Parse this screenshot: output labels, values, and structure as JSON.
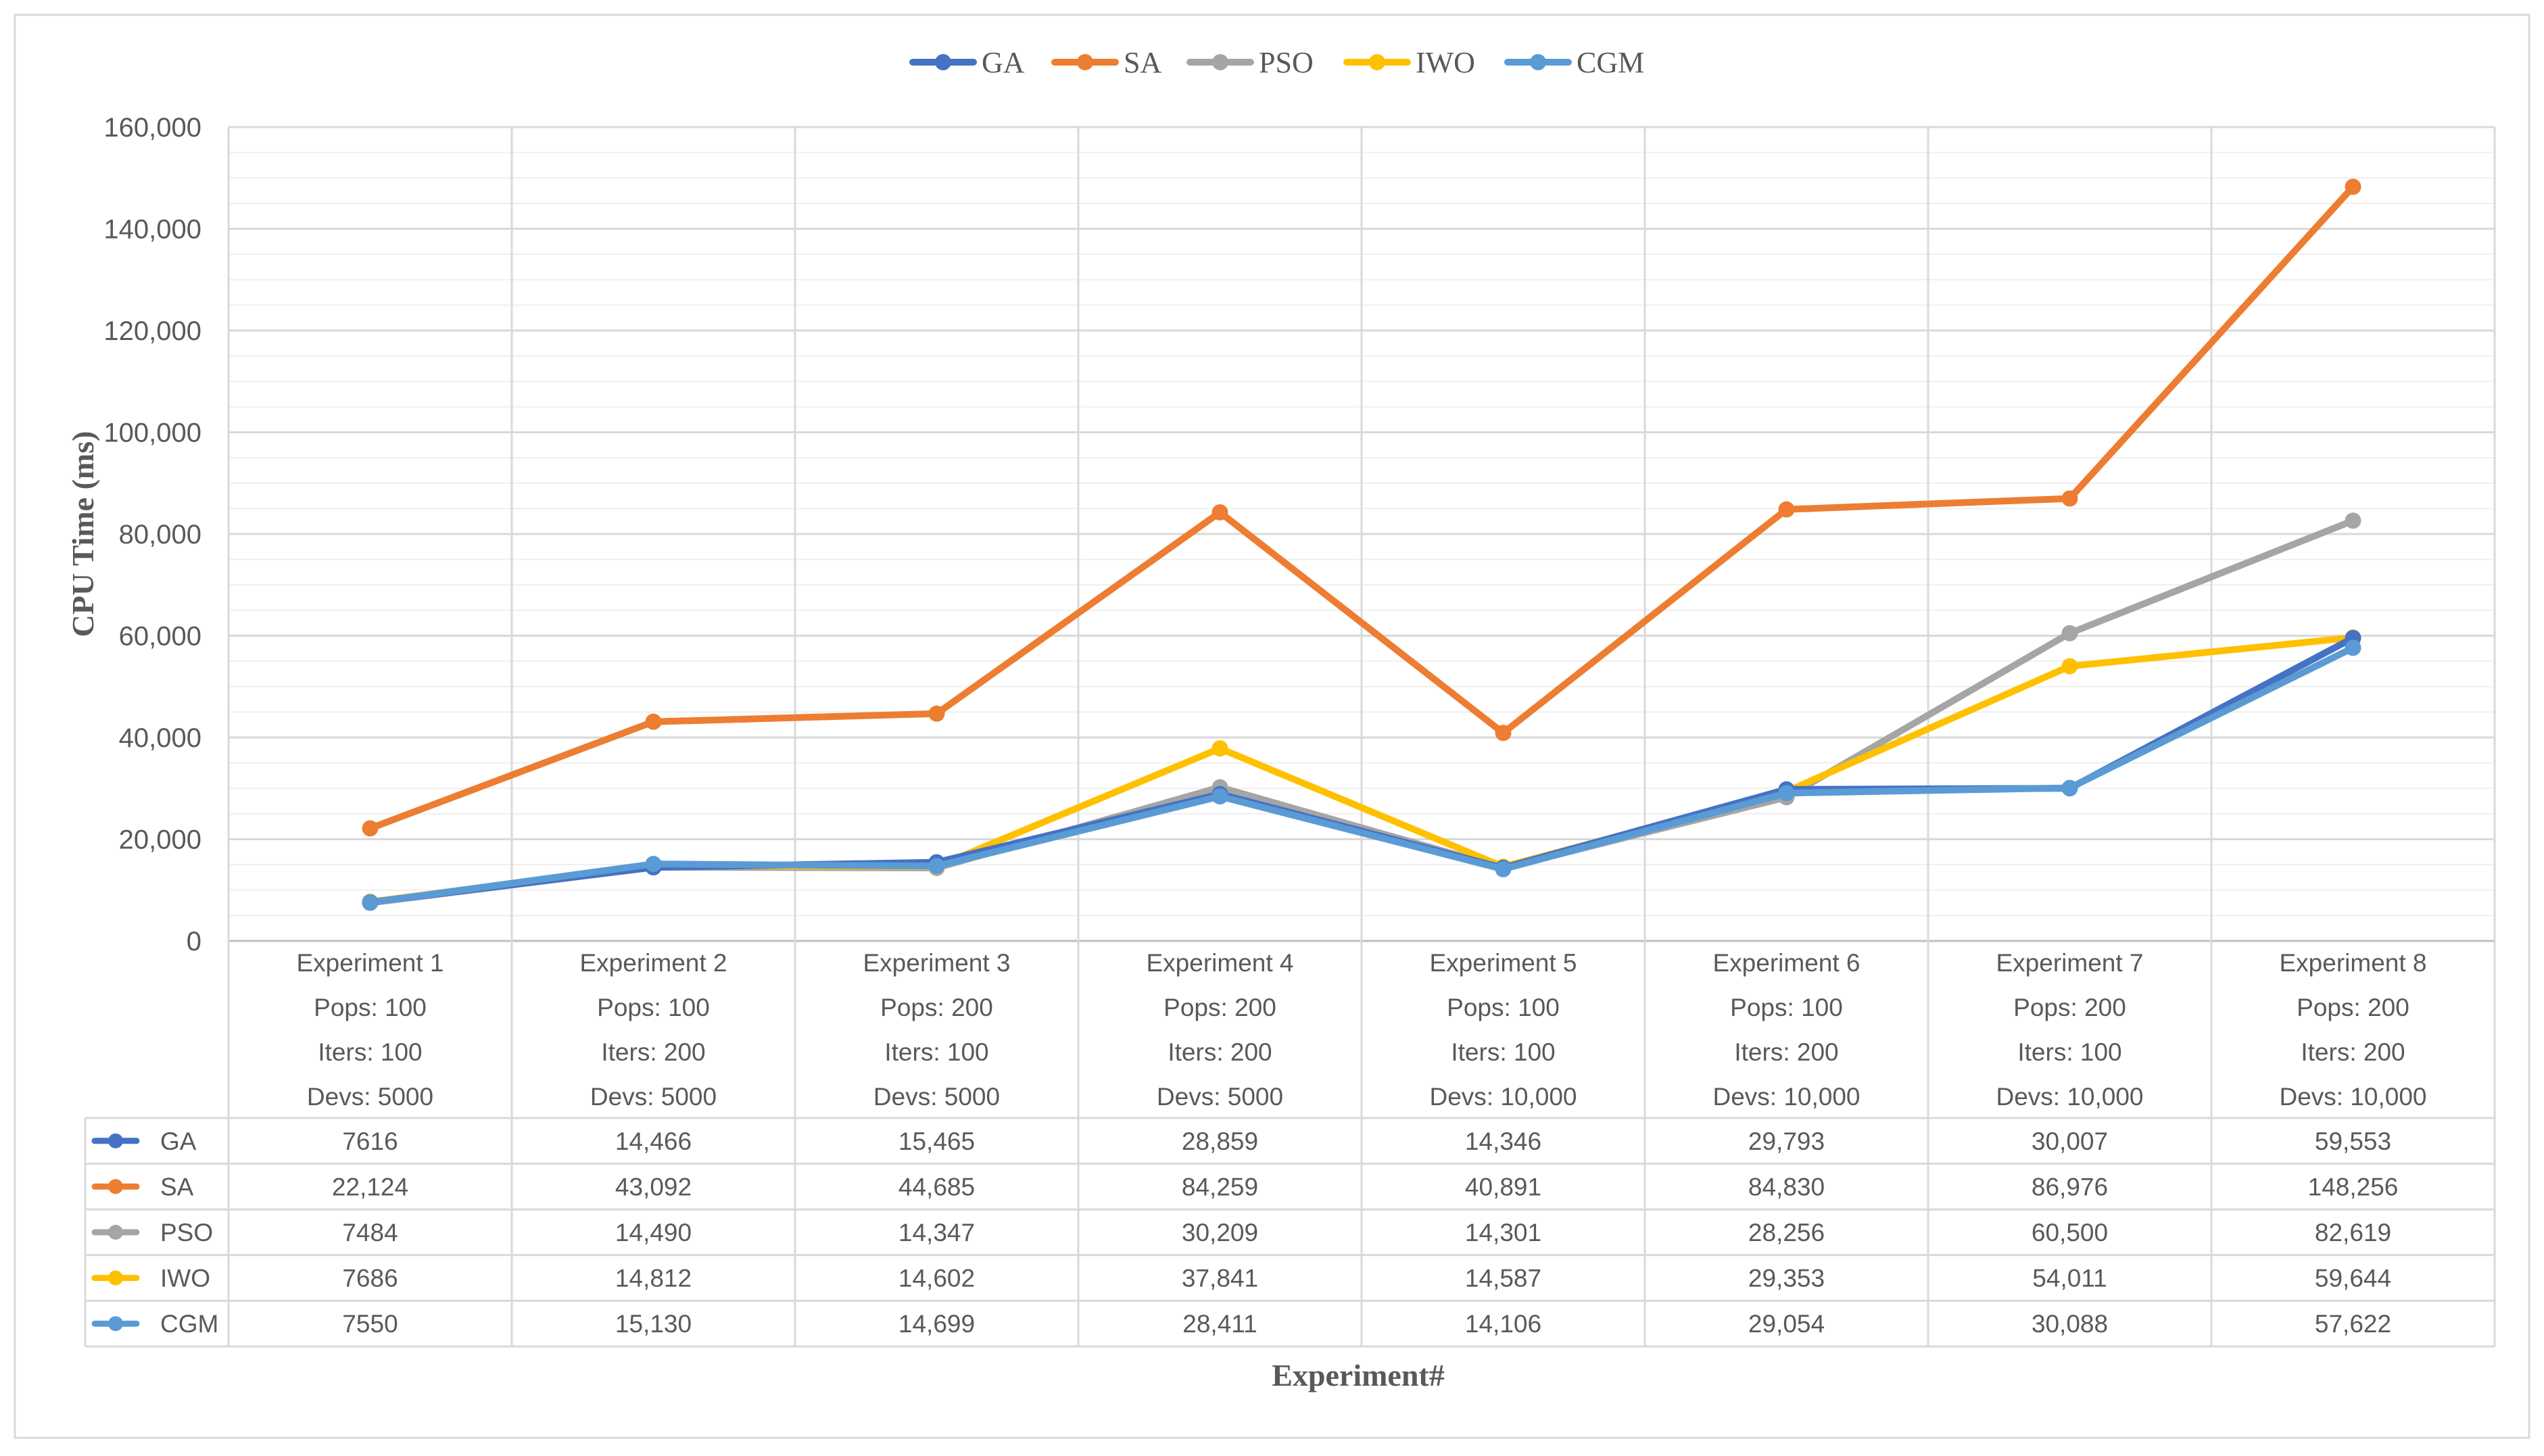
{
  "chart_data": {
    "type": "line",
    "title": "",
    "xlabel": "Experiment#",
    "ylabel": "CPU Time (ms)",
    "ylim": [
      0,
      160000
    ],
    "y_ticks": [
      "0",
      "20,000",
      "40,000",
      "60,000",
      "80,000",
      "100,000",
      "120,000",
      "140,000",
      "160,000"
    ],
    "grid": true,
    "legend_position": "top",
    "categories": [
      [
        "Experiment 1",
        "Pops: 100",
        "Iters: 100",
        "Devs: 5000"
      ],
      [
        "Experiment 2",
        "Pops: 100",
        "Iters: 200",
        "Devs: 5000"
      ],
      [
        "Experiment 3",
        "Pops: 200",
        "Iters: 100",
        "Devs: 5000"
      ],
      [
        "Experiment 4",
        "Pops: 200",
        "Iters: 200",
        "Devs: 5000"
      ],
      [
        "Experiment 5",
        "Pops: 100",
        "Iters: 100",
        "Devs: 10,000"
      ],
      [
        "Experiment 6",
        "Pops: 100",
        "Iters: 200",
        "Devs: 10,000"
      ],
      [
        "Experiment 7",
        "Pops: 200",
        "Iters: 100",
        "Devs: 10,000"
      ],
      [
        "Experiment 8",
        "Pops: 200",
        "Iters: 200",
        "Devs: 10,000"
      ]
    ],
    "series": [
      {
        "name": "GA",
        "color": "#4472C4",
        "values": [
          7616,
          14466,
          15465,
          28859,
          14346,
          29793,
          30007,
          59553
        ],
        "labels": [
          "7616",
          "14,466",
          "15,465",
          "28,859",
          "14,346",
          "29,793",
          "30,007",
          "59,553"
        ]
      },
      {
        "name": "SA",
        "color": "#ED7D31",
        "values": [
          22124,
          43092,
          44685,
          84259,
          40891,
          84830,
          86976,
          148256
        ],
        "labels": [
          "22,124",
          "43,092",
          "44,685",
          "84,259",
          "40,891",
          "84,830",
          "86,976",
          "148,256"
        ]
      },
      {
        "name": "PSO",
        "color": "#A5A5A5",
        "values": [
          7484,
          14490,
          14347,
          30209,
          14301,
          28256,
          60500,
          82619
        ],
        "labels": [
          "7484",
          "14,490",
          "14,347",
          "30,209",
          "14,301",
          "28,256",
          "60,500",
          "82,619"
        ]
      },
      {
        "name": "IWO",
        "color": "#FFC000",
        "values": [
          7686,
          14812,
          14602,
          37841,
          14587,
          29353,
          54011,
          59644
        ],
        "labels": [
          "7686",
          "14,812",
          "14,602",
          "37,841",
          "14,587",
          "29,353",
          "54,011",
          "59,644"
        ]
      },
      {
        "name": "CGM",
        "color": "#5B9BD5",
        "values": [
          7550,
          15130,
          14699,
          28411,
          14106,
          29054,
          30088,
          57622
        ],
        "labels": [
          "7550",
          "15,130",
          "14,699",
          "28,411",
          "14,106",
          "29,054",
          "30,088",
          "57,622"
        ]
      }
    ]
  }
}
